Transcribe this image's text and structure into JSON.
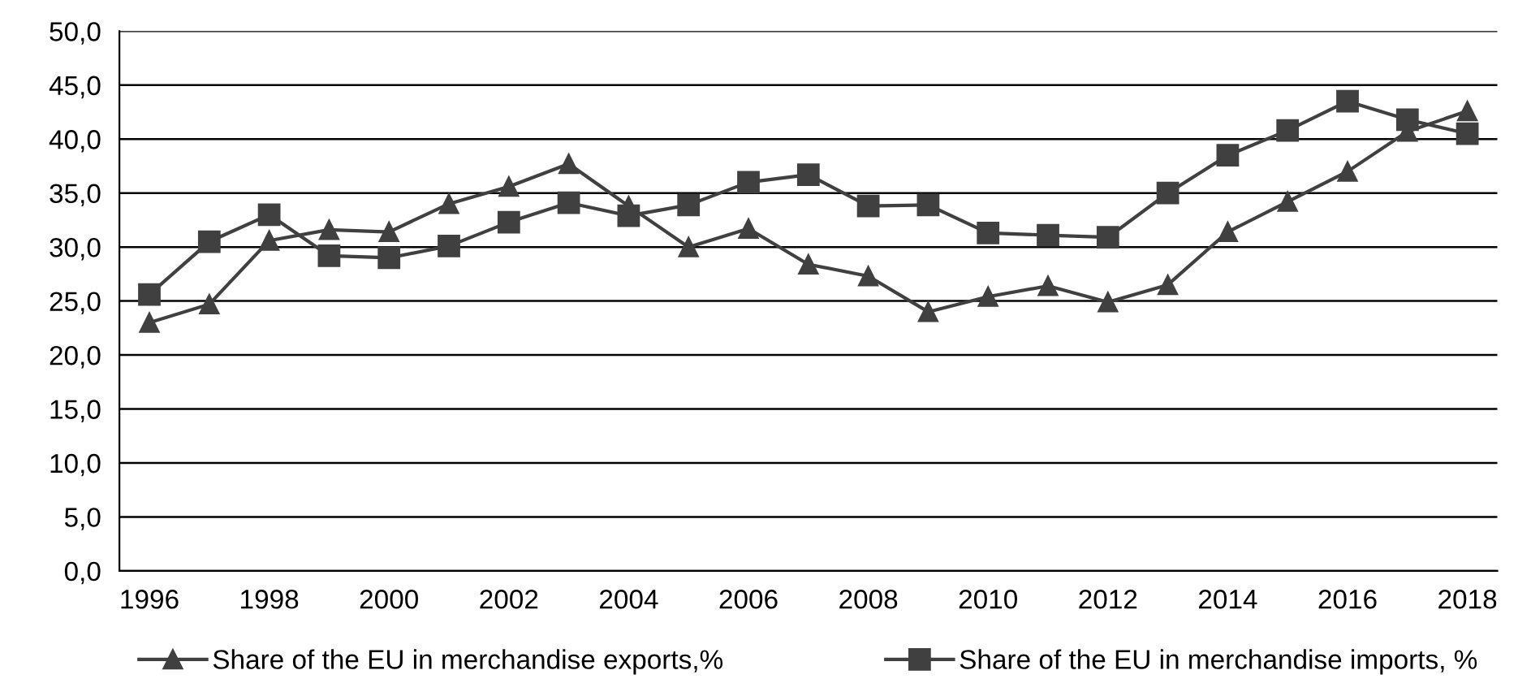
{
  "chart_data": {
    "type": "line",
    "x": [
      1996,
      1997,
      1998,
      1999,
      2000,
      2001,
      2002,
      2003,
      2004,
      2005,
      2006,
      2007,
      2008,
      2009,
      2010,
      2011,
      2012,
      2013,
      2014,
      2015,
      2016,
      2017,
      2018
    ],
    "series": [
      {
        "name": "Share of the EU in merchandise exports,%",
        "color": "#404040",
        "marker": "triangle",
        "values": [
          23.0,
          24.7,
          30.6,
          31.6,
          31.4,
          34.0,
          35.6,
          37.7,
          33.8,
          30.0,
          31.7,
          28.4,
          27.3,
          24.0,
          25.4,
          26.4,
          24.9,
          26.5,
          31.4,
          34.2,
          37.0,
          40.7,
          42.6
        ]
      },
      {
        "name": "Share of the EU in merchandise imports, %",
        "color": "#404040",
        "marker": "square",
        "values": [
          25.6,
          30.5,
          33.0,
          29.2,
          29.0,
          30.1,
          32.3,
          34.1,
          32.9,
          33.9,
          36.0,
          36.7,
          33.8,
          33.9,
          31.3,
          31.1,
          30.9,
          35.0,
          38.5,
          40.8,
          43.5,
          41.8,
          40.5
        ]
      }
    ],
    "xlim": [
      1995.5,
      2018.5
    ],
    "xticks": [
      1996,
      1998,
      2000,
      2002,
      2004,
      2006,
      2008,
      2010,
      2012,
      2014,
      2016,
      2018
    ],
    "ylim": [
      0,
      50
    ],
    "yticks": [
      {
        "value": 0,
        "label": "0,0"
      },
      {
        "value": 5,
        "label": "5,0"
      },
      {
        "value": 10,
        "label": "10,0"
      },
      {
        "value": 15,
        "label": "15,0"
      },
      {
        "value": 20,
        "label": "20,0"
      },
      {
        "value": 25,
        "label": "25,0"
      },
      {
        "value": 30,
        "label": "30,0"
      },
      {
        "value": 35,
        "label": "35,0"
      },
      {
        "value": 40,
        "label": "40,0"
      },
      {
        "value": 45,
        "label": "45,0"
      },
      {
        "value": 50,
        "label": "50,0"
      }
    ],
    "grid": "y",
    "legend": "bottom",
    "line_style": "solid"
  }
}
